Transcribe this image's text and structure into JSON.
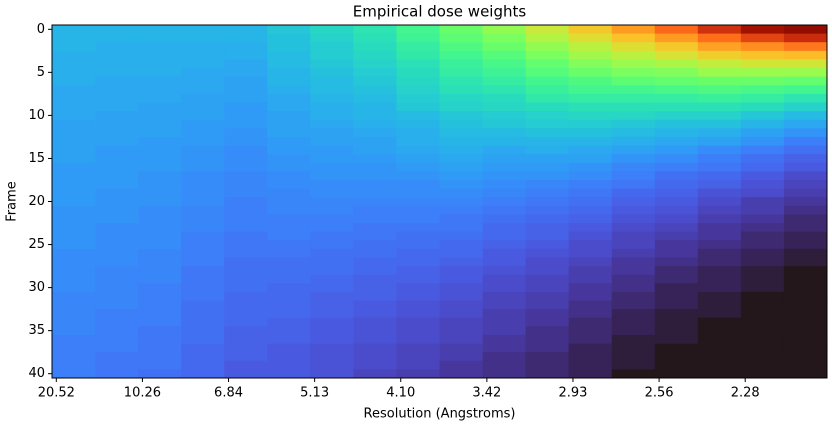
{
  "chart_data": {
    "type": "heatmap",
    "title": "Empirical dose weights",
    "x_label": "Resolution (Angstroms)",
    "y_label": "Frame",
    "colormap": "turbo",
    "x": [
      2,
      7,
      12,
      17,
      22,
      27,
      32,
      37,
      42,
      47,
      52,
      57,
      62,
      67,
      72,
      77,
      82,
      87
    ],
    "y": [
      0,
      1,
      2,
      3,
      4,
      5,
      6,
      7,
      8,
      9,
      10,
      11,
      12,
      13,
      14,
      15,
      16,
      17,
      18,
      19,
      20,
      21,
      22,
      23,
      24,
      25,
      26,
      27,
      28,
      29,
      30,
      31,
      32,
      33,
      34,
      35,
      36,
      37,
      38,
      39,
      40
    ],
    "xlim": [
      -0.5,
      89.5
    ],
    "ylim": [
      40.5,
      -0.5
    ],
    "xticks": [
      {
        "value": 0,
        "label": "20.52"
      },
      {
        "value": 10,
        "label": "10.26"
      },
      {
        "value": 20,
        "label": "6.84"
      },
      {
        "value": 30,
        "label": "5.13"
      },
      {
        "value": 40,
        "label": "4.10"
      },
      {
        "value": 50,
        "label": "3.42"
      },
      {
        "value": 60,
        "label": "2.93"
      },
      {
        "value": 70,
        "label": "2.56"
      },
      {
        "value": 80,
        "label": "2.28"
      }
    ],
    "yticks": [
      0,
      5,
      10,
      15,
      20,
      25,
      30,
      35,
      40
    ],
    "z": [
      [
        0.25,
        0.25,
        0.25,
        0.24,
        0.24,
        0.24,
        0.24,
        0.23,
        0.23,
        0.23,
        0.23,
        0.22,
        0.22,
        0.22,
        0.22,
        0.22,
        0.21,
        0.21,
        0.21,
        0.21,
        0.21,
        0.2,
        0.2,
        0.2,
        0.2,
        0.2,
        0.19,
        0.19,
        0.19,
        0.19,
        0.19,
        0.18,
        0.18,
        0.18,
        0.18,
        0.18,
        0.17,
        0.17,
        0.17,
        0.17,
        0.17
      ],
      [
        0.25,
        0.25,
        0.24,
        0.24,
        0.24,
        0.24,
        0.23,
        0.23,
        0.23,
        0.23,
        0.22,
        0.22,
        0.22,
        0.22,
        0.21,
        0.21,
        0.21,
        0.21,
        0.21,
        0.2,
        0.2,
        0.2,
        0.2,
        0.19,
        0.19,
        0.19,
        0.19,
        0.19,
        0.18,
        0.18,
        0.18,
        0.18,
        0.18,
        0.17,
        0.17,
        0.17,
        0.17,
        0.17,
        0.16,
        0.16,
        0.16
      ],
      [
        0.25,
        0.25,
        0.24,
        0.24,
        0.24,
        0.24,
        0.23,
        0.23,
        0.23,
        0.22,
        0.22,
        0.22,
        0.22,
        0.21,
        0.21,
        0.21,
        0.21,
        0.2,
        0.2,
        0.2,
        0.2,
        0.19,
        0.19,
        0.19,
        0.19,
        0.19,
        0.18,
        0.18,
        0.18,
        0.18,
        0.17,
        0.17,
        0.17,
        0.17,
        0.17,
        0.16,
        0.16,
        0.16,
        0.16,
        0.16,
        0.15
      ],
      [
        0.25,
        0.25,
        0.24,
        0.24,
        0.24,
        0.23,
        0.23,
        0.23,
        0.22,
        0.22,
        0.22,
        0.21,
        0.21,
        0.21,
        0.2,
        0.2,
        0.2,
        0.19,
        0.19,
        0.19,
        0.19,
        0.18,
        0.18,
        0.18,
        0.17,
        0.17,
        0.17,
        0.17,
        0.16,
        0.16,
        0.16,
        0.16,
        0.15,
        0.15,
        0.15,
        0.15,
        0.15,
        0.14,
        0.14,
        0.14,
        0.14
      ],
      [
        0.25,
        0.25,
        0.24,
        0.24,
        0.23,
        0.23,
        0.22,
        0.22,
        0.22,
        0.21,
        0.21,
        0.21,
        0.2,
        0.2,
        0.19,
        0.19,
        0.19,
        0.18,
        0.18,
        0.18,
        0.17,
        0.17,
        0.17,
        0.17,
        0.16,
        0.16,
        0.16,
        0.15,
        0.15,
        0.15,
        0.15,
        0.14,
        0.14,
        0.14,
        0.14,
        0.13,
        0.13,
        0.13,
        0.13,
        0.12,
        0.12
      ],
      [
        0.28,
        0.27,
        0.27,
        0.26,
        0.26,
        0.25,
        0.25,
        0.24,
        0.23,
        0.23,
        0.22,
        0.22,
        0.22,
        0.21,
        0.21,
        0.2,
        0.2,
        0.19,
        0.19,
        0.18,
        0.18,
        0.18,
        0.17,
        0.17,
        0.17,
        0.16,
        0.16,
        0.15,
        0.15,
        0.15,
        0.14,
        0.14,
        0.14,
        0.14,
        0.13,
        0.13,
        0.13,
        0.12,
        0.12,
        0.12,
        0.12
      ],
      [
        0.31,
        0.3,
        0.29,
        0.29,
        0.28,
        0.27,
        0.26,
        0.26,
        0.25,
        0.24,
        0.24,
        0.23,
        0.22,
        0.22,
        0.21,
        0.21,
        0.2,
        0.2,
        0.19,
        0.19,
        0.18,
        0.18,
        0.17,
        0.17,
        0.16,
        0.16,
        0.15,
        0.15,
        0.15,
        0.14,
        0.14,
        0.13,
        0.13,
        0.13,
        0.12,
        0.12,
        0.12,
        0.11,
        0.11,
        0.11,
        0.11
      ],
      [
        0.34,
        0.33,
        0.32,
        0.31,
        0.3,
        0.29,
        0.28,
        0.27,
        0.26,
        0.25,
        0.25,
        0.24,
        0.23,
        0.22,
        0.22,
        0.21,
        0.2,
        0.2,
        0.19,
        0.19,
        0.18,
        0.17,
        0.17,
        0.16,
        0.16,
        0.15,
        0.15,
        0.14,
        0.14,
        0.13,
        0.13,
        0.13,
        0.12,
        0.12,
        0.11,
        0.11,
        0.11,
        0.1,
        0.1,
        0.1,
        0.09
      ],
      [
        0.39,
        0.38,
        0.36,
        0.35,
        0.33,
        0.32,
        0.31,
        0.3,
        0.29,
        0.28,
        0.26,
        0.25,
        0.24,
        0.24,
        0.23,
        0.22,
        0.21,
        0.2,
        0.19,
        0.19,
        0.18,
        0.17,
        0.17,
        0.16,
        0.15,
        0.15,
        0.14,
        0.14,
        0.13,
        0.13,
        0.12,
        0.12,
        0.11,
        0.11,
        0.1,
        0.1,
        0.1,
        0.09,
        0.09,
        0.09,
        0.08
      ],
      [
        0.45,
        0.43,
        0.41,
        0.39,
        0.37,
        0.36,
        0.34,
        0.33,
        0.31,
        0.3,
        0.28,
        0.27,
        0.26,
        0.25,
        0.24,
        0.23,
        0.22,
        0.21,
        0.2,
        0.19,
        0.18,
        0.17,
        0.16,
        0.16,
        0.15,
        0.14,
        0.14,
        0.13,
        0.12,
        0.12,
        0.11,
        0.11,
        0.1,
        0.1,
        0.09,
        0.09,
        0.09,
        0.08,
        0.08,
        0.07,
        0.07
      ],
      [
        0.5,
        0.47,
        0.45,
        0.42,
        0.4,
        0.38,
        0.36,
        0.34,
        0.32,
        0.31,
        0.29,
        0.28,
        0.26,
        0.25,
        0.23,
        0.22,
        0.21,
        0.2,
        0.19,
        0.18,
        0.17,
        0.16,
        0.15,
        0.14,
        0.14,
        0.13,
        0.12,
        0.12,
        0.11,
        0.1,
        0.1,
        0.09,
        0.09,
        0.08,
        0.08,
        0.08,
        0.07,
        0.07,
        0.06,
        0.06,
        0.06
      ],
      [
        0.57,
        0.54,
        0.5,
        0.47,
        0.44,
        0.42,
        0.39,
        0.37,
        0.35,
        0.32,
        0.3,
        0.29,
        0.27,
        0.25,
        0.24,
        0.22,
        0.21,
        0.2,
        0.18,
        0.17,
        0.16,
        0.15,
        0.14,
        0.13,
        0.13,
        0.12,
        0.11,
        0.1,
        0.1,
        0.09,
        0.09,
        0.08,
        0.08,
        0.07,
        0.07,
        0.06,
        0.06,
        0.06,
        0.05,
        0.05,
        0.05
      ],
      [
        0.64,
        0.6,
        0.55,
        0.52,
        0.48,
        0.45,
        0.41,
        0.39,
        0.36,
        0.33,
        0.31,
        0.29,
        0.27,
        0.25,
        0.23,
        0.22,
        0.2,
        0.19,
        0.17,
        0.16,
        0.15,
        0.14,
        0.13,
        0.12,
        0.11,
        0.1,
        0.1,
        0.09,
        0.08,
        0.08,
        0.07,
        0.07,
        0.06,
        0.06,
        0.05,
        0.05,
        0.05,
        0.04,
        0.04,
        0.04,
        0.04
      ],
      [
        0.71,
        0.65,
        0.6,
        0.55,
        0.51,
        0.47,
        0.43,
        0.39,
        0.36,
        0.33,
        0.31,
        0.28,
        0.26,
        0.24,
        0.22,
        0.2,
        0.18,
        0.17,
        0.16,
        0.14,
        0.13,
        0.12,
        0.11,
        0.1,
        0.09,
        0.09,
        0.08,
        0.07,
        0.07,
        0.06,
        0.06,
        0.05,
        0.05,
        0.04,
        0.04,
        0.04,
        0.03,
        0.03,
        0.03,
        0.03,
        0.02
      ],
      [
        0.78,
        0.71,
        0.64,
        0.59,
        0.53,
        0.48,
        0.44,
        0.4,
        0.36,
        0.33,
        0.3,
        0.27,
        0.25,
        0.23,
        0.21,
        0.19,
        0.17,
        0.15,
        0.14,
        0.13,
        0.12,
        0.11,
        0.1,
        0.09,
        0.08,
        0.07,
        0.07,
        0.06,
        0.05,
        0.05,
        0.04,
        0.04,
        0.04,
        0.03,
        0.03,
        0.03,
        0.03,
        0.02,
        0.02,
        0.02,
        0.02
      ],
      [
        0.86,
        0.77,
        0.7,
        0.63,
        0.56,
        0.51,
        0.45,
        0.41,
        0.37,
        0.33,
        0.3,
        0.27,
        0.24,
        0.22,
        0.19,
        0.17,
        0.16,
        0.14,
        0.13,
        0.11,
        0.1,
        0.09,
        0.08,
        0.07,
        0.07,
        0.06,
        0.05,
        0.05,
        0.04,
        0.04,
        0.04,
        0.03,
        0.03,
        0.03,
        0.02,
        0.02,
        0.02,
        0.02,
        0.02,
        0.02,
        0.02
      ],
      [
        0.93,
        0.83,
        0.73,
        0.65,
        0.58,
        0.51,
        0.45,
        0.4,
        0.36,
        0.32,
        0.28,
        0.25,
        0.22,
        0.2,
        0.17,
        0.15,
        0.14,
        0.12,
        0.11,
        0.1,
        0.08,
        0.08,
        0.07,
        0.06,
        0.05,
        0.05,
        0.04,
        0.04,
        0.03,
        0.03,
        0.03,
        0.02,
        0.02,
        0.02,
        0.02,
        0.02,
        0.02,
        0.02,
        0.02,
        0.02,
        0.02
      ],
      [
        0.99,
        0.87,
        0.76,
        0.66,
        0.58,
        0.51,
        0.44,
        0.39,
        0.34,
        0.3,
        0.26,
        0.23,
        0.2,
        0.17,
        0.15,
        0.13,
        0.12,
        0.1,
        0.09,
        0.08,
        0.07,
        0.06,
        0.05,
        0.05,
        0.04,
        0.04,
        0.03,
        0.03,
        0.02,
        0.02,
        0.02,
        0.02,
        0.02,
        0.02,
        0.02,
        0.02,
        0.02,
        0.02,
        0.02,
        0.02,
        0.02
      ]
    ]
  }
}
